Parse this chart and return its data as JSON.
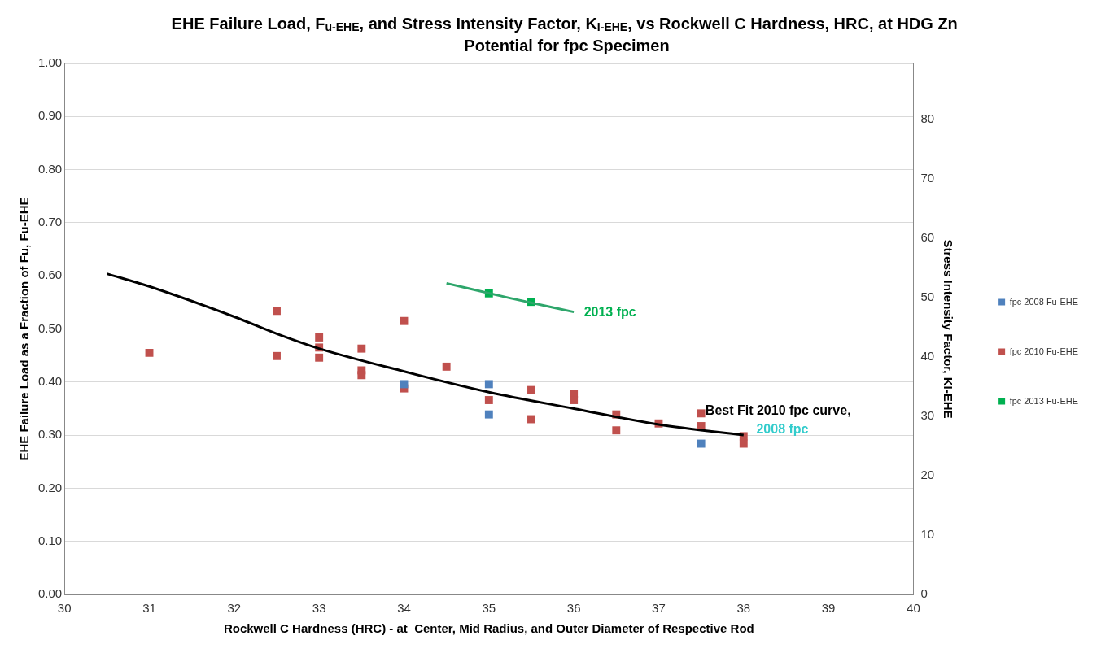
{
  "chart_data": {
    "type": "scatter",
    "title": "EHE Failure Load, F$_{u-EHE}$, and Stress Intensity Factor, K$_{I-EHE}$, vs Rockwell C Hardness, HRC, at HDG Zn Potential for fpc Specimen",
    "xlabel": "Rockwell C Hardness (HRC) - at  Center, Mid Radius, and Outer Diameter of Respective Rod",
    "ylabel": "EHE Failure Load as a Fraction of Fu, Fu-EHE",
    "y2label": "Stress Intensity Factor, KI-EHE",
    "xlim": [
      30,
      40
    ],
    "xticks": [
      30,
      31,
      32,
      33,
      34,
      35,
      36,
      37,
      38,
      39,
      40
    ],
    "ylim": [
      0,
      1
    ],
    "yticks": [
      {
        "value": 0,
        "label": "0.00"
      },
      {
        "value": 0.1,
        "label": "0.10"
      },
      {
        "value": 0.2,
        "label": "0.20"
      },
      {
        "value": 0.3,
        "label": "0.30"
      },
      {
        "value": 0.4,
        "label": "0.40"
      },
      {
        "value": 0.5,
        "label": "0.50"
      },
      {
        "value": 0.6,
        "label": "0.60"
      },
      {
        "value": 0.7,
        "label": "0.70"
      },
      {
        "value": 0.8,
        "label": "0.80"
      },
      {
        "value": 0.9,
        "label": "0.90"
      },
      {
        "value": 1,
        "label": "1.00"
      }
    ],
    "y2lim": [
      0,
      89.5
    ],
    "y2ticks": [
      0,
      10,
      20,
      30,
      40,
      50,
      60,
      70,
      80
    ],
    "grid": "y",
    "legend": "right",
    "marker": "square",
    "series": [
      {
        "type": "line",
        "color": "#000000",
        "marker": "none",
        "x": [
          30.5,
          31,
          32,
          32.5,
          33,
          34,
          35,
          36,
          37,
          38
        ],
        "values": [
          0.604,
          0.58,
          0.523,
          0.491,
          0.463,
          0.42,
          0.381,
          0.35,
          0.32,
          0.3
        ]
      },
      {
        "type": "line",
        "color": "#2ea66b",
        "marker": "none",
        "x": [
          34.5,
          35.25,
          36
        ],
        "values": [
          0.586,
          0.558,
          0.532
        ]
      },
      {
        "name": "fpc 2008 Fu-EHE",
        "color": "#4f81bd",
        "x": [
          34,
          35,
          35,
          37.5
        ],
        "values": [
          0.396,
          0.396,
          0.339,
          0.284
        ]
      },
      {
        "name": "fpc 2010 Fu-EHE",
        "color": "#c0504d",
        "x": [
          31,
          32.5,
          32.5,
          33,
          33,
          33,
          33.5,
          33.5,
          33.5,
          34,
          34,
          34.5,
          35,
          35.5,
          35.5,
          36,
          36,
          36.5,
          36.5,
          37,
          37.5,
          37.5,
          38,
          38
        ],
        "values": [
          0.455,
          0.534,
          0.449,
          0.484,
          0.465,
          0.446,
          0.463,
          0.422,
          0.413,
          0.515,
          0.388,
          0.429,
          0.366,
          0.385,
          0.33,
          0.377,
          0.366,
          0.339,
          0.309,
          0.322,
          0.341,
          0.317,
          0.298,
          0.284
        ]
      },
      {
        "name": "fpc 2013 Fu-EHE",
        "color": "#00b050",
        "x": [
          35,
          35.5
        ],
        "values": [
          0.567,
          0.551
        ]
      }
    ],
    "annotations": [
      "2013 fpc",
      "Best Fit 2010 fpc curve,",
      "2008 fpc"
    ]
  }
}
